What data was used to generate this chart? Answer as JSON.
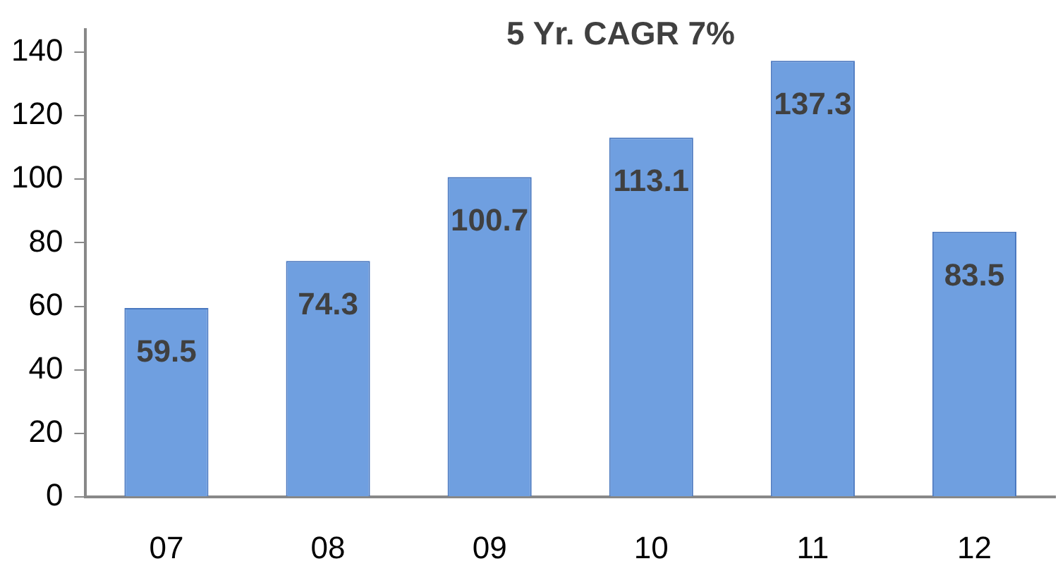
{
  "chart_data": {
    "type": "bar",
    "title": "5 Yr. CAGR 7%",
    "categories": [
      "07",
      "08",
      "09",
      "10",
      "11",
      "12"
    ],
    "values": [
      59.5,
      74.3,
      100.7,
      113.1,
      137.3,
      83.5
    ],
    "color": "#6f9fe0",
    "ylim": [
      0,
      147
    ],
    "yticks": [
      0,
      20,
      40,
      60,
      80,
      100,
      120,
      140
    ],
    "grid": false,
    "legend": false,
    "data_labels": true
  }
}
